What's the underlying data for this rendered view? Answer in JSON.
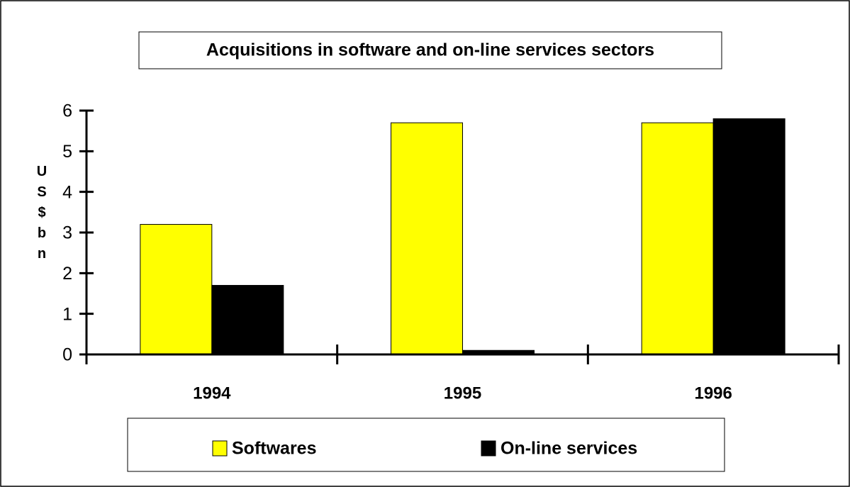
{
  "chart_data": {
    "type": "bar",
    "title": "Acquisitions in software and on-line services sectors",
    "y_label": "US$ bn",
    "categories": [
      "1994",
      "1995",
      "1996"
    ],
    "series": [
      {
        "name": "Softwares",
        "color": "#ffff00",
        "values": [
          3.2,
          5.7,
          5.7
        ]
      },
      {
        "name": "On-line services",
        "color": "#000000",
        "values": [
          1.7,
          0.1,
          5.8
        ]
      }
    ],
    "ylim": [
      0,
      6
    ],
    "yticks": [
      0,
      1,
      2,
      3,
      4,
      5,
      6
    ],
    "grid": false,
    "legend": "bottom"
  }
}
